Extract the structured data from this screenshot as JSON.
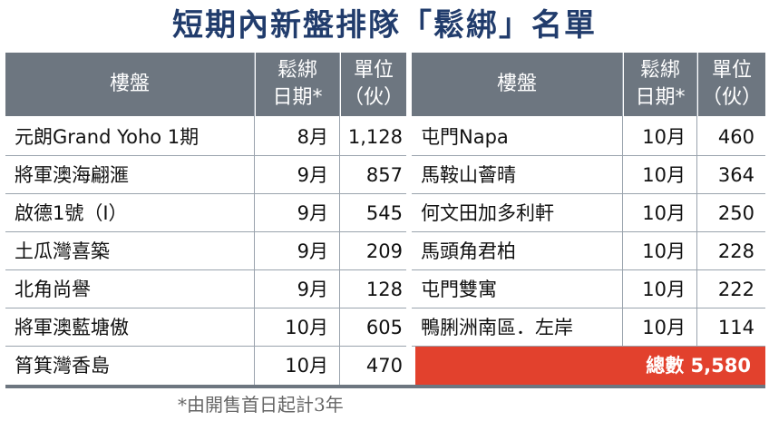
{
  "title": "短期內新盤排隊「鬆綁」名單",
  "headers": {
    "name": "樓盤",
    "date_line1": "鬆綁",
    "date_line2": "日期*",
    "units_line1": "單位",
    "units_line2": "（伙）"
  },
  "left_rows": [
    {
      "name": "元朗Grand Yoho 1期",
      "date": "8月",
      "units": "1,128"
    },
    {
      "name": "將軍澳海翩滙",
      "date": "9月",
      "units": "857"
    },
    {
      "name": "啟德1號（I）",
      "date": "9月",
      "units": "545"
    },
    {
      "name": "土瓜灣喜築",
      "date": "9月",
      "units": "209"
    },
    {
      "name": "北角尚譽",
      "date": "9月",
      "units": "128"
    },
    {
      "name": "將軍澳藍塘傲",
      "date": "10月",
      "units": "605"
    },
    {
      "name": "筲箕灣香島",
      "date": "10月",
      "units": "470"
    }
  ],
  "right_rows": [
    {
      "name": "屯門Napa",
      "date": "10月",
      "units": "460"
    },
    {
      "name": "馬鞍山薈晴",
      "date": "10月",
      "units": "364"
    },
    {
      "name": "何文田加多利軒",
      "date": "10月",
      "units": "250"
    },
    {
      "name": "馬頭角君柏",
      "date": "10月",
      "units": "228"
    },
    {
      "name": "屯門雙寓",
      "date": "10月",
      "units": "222"
    },
    {
      "name": "鴨脷洲南區．左岸",
      "date": "10月",
      "units": "114"
    }
  ],
  "total": "總數 5,580",
  "footnote": "*由開售首日起計3年",
  "colors": {
    "header": "#6d7680",
    "title": "#213c6c",
    "total": "#e2412d"
  }
}
